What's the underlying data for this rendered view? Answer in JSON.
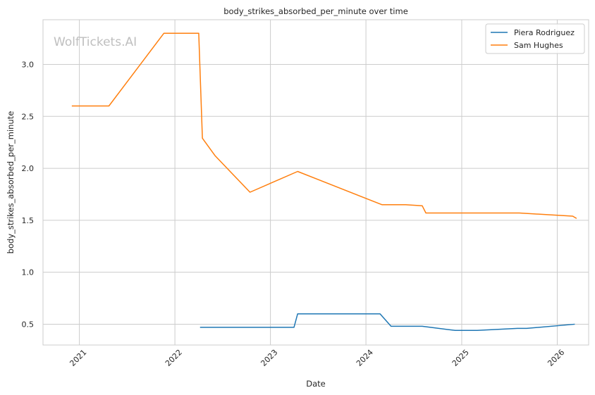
{
  "watermark": "WolfTickets.AI",
  "chart_data": {
    "type": "line",
    "title": "body_strikes_absorbed_per_minute over time",
    "xlabel": "Date",
    "ylabel": "body_strikes_absorbed_per_minute",
    "xlim": [
      "2020-08-15",
      "2026-05-01"
    ],
    "ylim": [
      0.3,
      3.43
    ],
    "x_ticks": [
      {
        "date": "2021-01-01",
        "label": "2021"
      },
      {
        "date": "2022-01-01",
        "label": "2022"
      },
      {
        "date": "2023-01-01",
        "label": "2023"
      },
      {
        "date": "2024-01-01",
        "label": "2024"
      },
      {
        "date": "2025-01-01",
        "label": "2025"
      },
      {
        "date": "2026-01-01",
        "label": "2026"
      }
    ],
    "y_ticks": [
      {
        "value": 0.5,
        "label": "0.5"
      },
      {
        "value": 1.0,
        "label": "1.0"
      },
      {
        "value": 1.5,
        "label": "1.5"
      },
      {
        "value": 2.0,
        "label": "2.0"
      },
      {
        "value": 2.5,
        "label": "2.5"
      },
      {
        "value": 3.0,
        "label": "3.0"
      }
    ],
    "grid": true,
    "legend_position": "top-right",
    "series": [
      {
        "name": "Piera Rodriguez",
        "color": "#1f77b4",
        "points": [
          {
            "x": "2022-04-09",
            "y": 0.47
          },
          {
            "x": "2023-04-01",
            "y": 0.47
          },
          {
            "x": "2023-04-15",
            "y": 0.6
          },
          {
            "x": "2024-02-24",
            "y": 0.6
          },
          {
            "x": "2024-04-06",
            "y": 0.48
          },
          {
            "x": "2024-08-03",
            "y": 0.48
          },
          {
            "x": "2024-12-07",
            "y": 0.44
          },
          {
            "x": "2025-03-01",
            "y": 0.44
          },
          {
            "x": "2025-08-02",
            "y": 0.46
          },
          {
            "x": "2025-09-06",
            "y": 0.46
          },
          {
            "x": "2026-03-07",
            "y": 0.5
          }
        ]
      },
      {
        "name": "Sam Hughes",
        "color": "#ff7f0e",
        "points": [
          {
            "x": "2020-12-05",
            "y": 2.6
          },
          {
            "x": "2021-04-24",
            "y": 2.6
          },
          {
            "x": "2021-11-20",
            "y": 3.3
          },
          {
            "x": "2022-04-02",
            "y": 3.3
          },
          {
            "x": "2022-04-16",
            "y": 2.29
          },
          {
            "x": "2022-06-04",
            "y": 2.12
          },
          {
            "x": "2022-10-15",
            "y": 1.77
          },
          {
            "x": "2023-04-15",
            "y": 1.97
          },
          {
            "x": "2024-03-02",
            "y": 1.65
          },
          {
            "x": "2024-06-01",
            "y": 1.65
          },
          {
            "x": "2024-08-03",
            "y": 1.64
          },
          {
            "x": "2024-08-17",
            "y": 1.57
          },
          {
            "x": "2025-08-09",
            "y": 1.57
          },
          {
            "x": "2026-03-01",
            "y": 1.54
          },
          {
            "x": "2026-03-14",
            "y": 1.52
          }
        ]
      }
    ]
  }
}
